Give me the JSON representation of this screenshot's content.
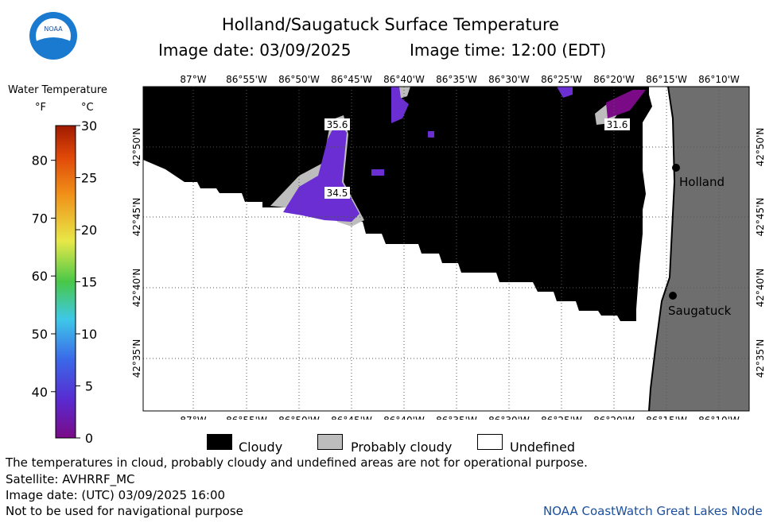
{
  "header": {
    "title": "Holland/Saugatuck Surface Temperature",
    "image_date": "Image date: 03/09/2025",
    "image_time": "Image time: 12:00 (EDT)",
    "logo_text": "NOAA"
  },
  "colorbar": {
    "title": "Water Temperature",
    "unit_f": "°F",
    "unit_c": "°C",
    "f_ticks": [
      "80",
      "70",
      "60",
      "50",
      "40"
    ],
    "c_ticks": [
      "30",
      "25",
      "20",
      "15",
      "10",
      "5",
      "0"
    ]
  },
  "map": {
    "lon_labels": [
      "87°W",
      "86°55'W",
      "86°50'W",
      "86°45'W",
      "86°40'W",
      "86°35'W",
      "86°30'W",
      "86°25'W",
      "86°20'W",
      "86°15'W",
      "86°10'W"
    ],
    "lat_labels": [
      "42°50'N",
      "42°45'N",
      "42°40'N",
      "42°35'N"
    ],
    "cities": [
      "Holland",
      "Saugatuck"
    ],
    "temp_labels": [
      "35.6",
      "34.5",
      "31.6"
    ],
    "colors": {
      "cloudy": "#000000",
      "probably_cloudy": "#bdbdbd",
      "undefined": "#ffffff",
      "land": "#6e6e6e",
      "cold_water": "#6a2ed2",
      "very_cold_water": "#7b0a86"
    }
  },
  "key": {
    "cloudy": "Cloudy",
    "probably_cloudy": "Probably cloudy",
    "undefined": "Undefined"
  },
  "footer": {
    "note1": "The temperatures in cloud, probably cloudy and undefined areas are not for operational purpose.",
    "satellite": "Satellite: AVHRRF_MC",
    "utc_date": "Image date: (UTC) 03/09/2025  16:00",
    "nav_note": "Not to be used for navigational purpose",
    "credit": "NOAA CoastWatch Great Lakes Node"
  }
}
